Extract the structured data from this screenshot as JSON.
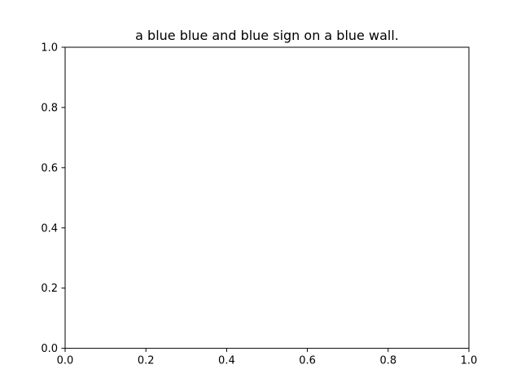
{
  "chart_data": {
    "type": "line",
    "title": "a blue blue and blue sign on a blue wall.",
    "xlabel": "",
    "ylabel": "",
    "xlim": [
      0.0,
      1.0
    ],
    "ylim": [
      0.0,
      1.0
    ],
    "xticks": [
      0.0,
      0.2,
      0.4,
      0.6,
      0.8,
      1.0
    ],
    "xtick_labels": [
      "0.0",
      "0.2",
      "0.4",
      "0.6",
      "0.8",
      "1.0"
    ],
    "yticks": [
      0.0,
      0.2,
      0.4,
      0.6,
      0.8,
      1.0
    ],
    "ytick_labels": [
      "0.0",
      "0.2",
      "0.4",
      "0.6",
      "0.8",
      "1.0"
    ],
    "grid": false,
    "series": []
  }
}
